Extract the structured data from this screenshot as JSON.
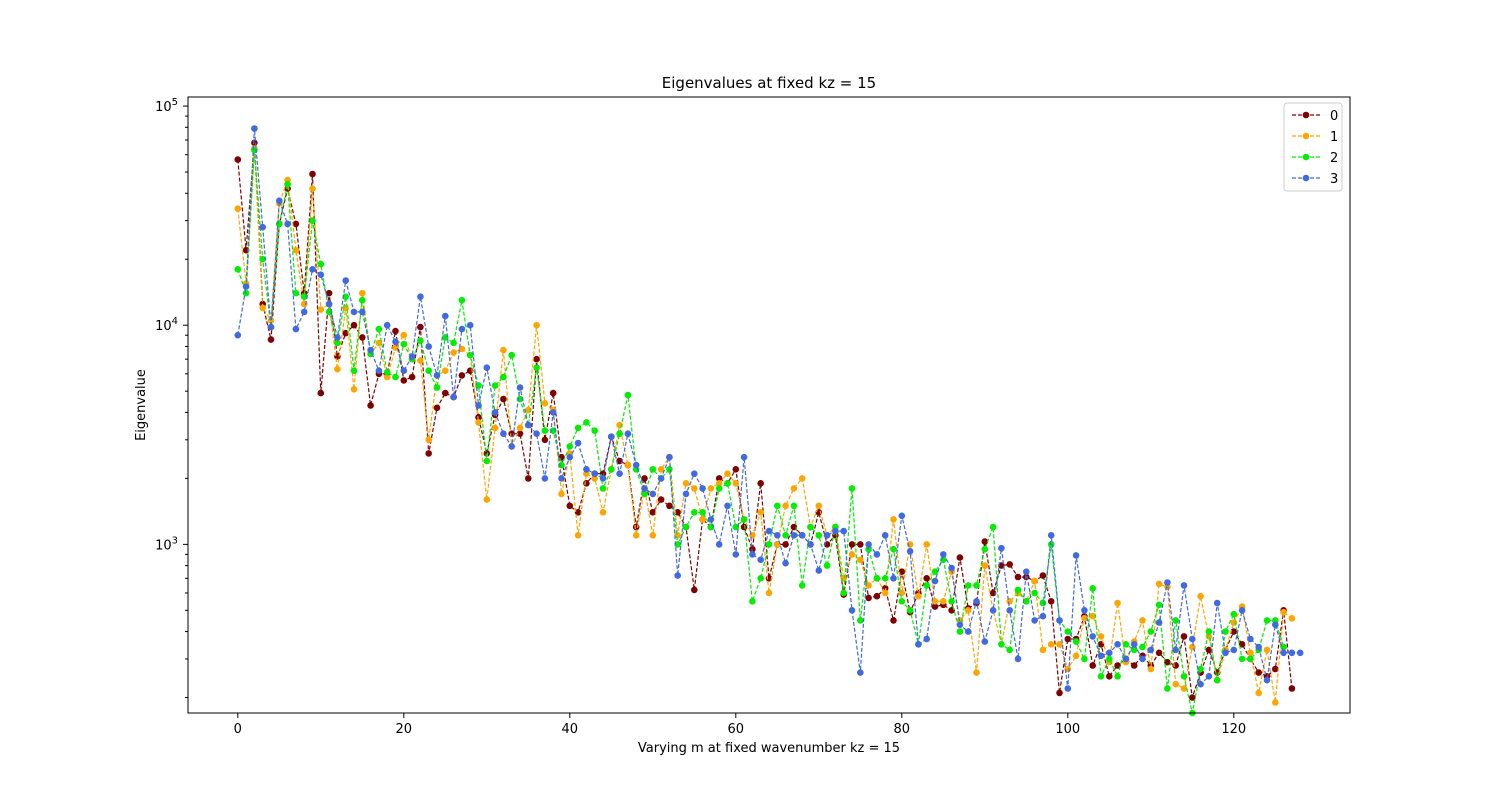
{
  "chart_data": {
    "type": "line",
    "title": "Eigenvalues at fixed kz = 15",
    "xlabel": "Varying m at fixed wavenumber kz = 15",
    "ylabel": "Eigenvalue",
    "xlim": [
      -6,
      134
    ],
    "ylim": [
      170,
      110000
    ],
    "y_scale": "log",
    "x_ticks": [
      0,
      20,
      40,
      60,
      80,
      100,
      120
    ],
    "y_ticks": [
      1000,
      10000,
      100000
    ],
    "y_tick_labels": [
      {
        "base": "10",
        "exp": "3"
      },
      {
        "base": "10",
        "exp": "4"
      },
      {
        "base": "10",
        "exp": "5"
      }
    ],
    "grid": false,
    "legend_position": "top-right",
    "series": [
      {
        "name": "0",
        "color": "#800000",
        "values": [
          57000,
          22000,
          68000,
          12500,
          8600,
          29000,
          42000,
          29000,
          14000,
          49000,
          4900,
          14000,
          7200,
          9200,
          10000,
          8800,
          4300,
          6000,
          6000,
          9400,
          5600,
          5800,
          9800,
          2600,
          4200,
          4900,
          4700,
          5900,
          6200,
          3800,
          2600,
          3900,
          4600,
          3200,
          3200,
          2000,
          7000,
          3000,
          4900,
          2500,
          1500,
          1400,
          1900,
          2100,
          2100,
          3100,
          2400,
          2300,
          1200,
          2000,
          1400,
          1600,
          1500,
          1400,
          1200,
          620,
          1300,
          1200,
          2000,
          1900,
          2200,
          1200,
          950,
          1900,
          700,
          1000,
          1000,
          1200,
          1100,
          1000,
          1400,
          1000,
          1100,
          590,
          1000,
          1000,
          570,
          580,
          630,
          450,
          750,
          490,
          600,
          700,
          520,
          530,
          500,
          870,
          510,
          540,
          1030,
          600,
          800,
          810,
          710,
          710,
          680,
          720,
          550,
          210,
          370,
          370,
          470,
          280,
          350,
          250,
          280,
          300,
          280,
          310,
          280,
          320,
          290,
          280,
          380,
          200,
          260,
          330,
          260,
          330,
          400,
          350,
          300,
          260,
          250,
          270,
          500,
          220
        ]
      },
      {
        "name": "1",
        "color": "#ffa500",
        "values": [
          34000,
          15500,
          64000,
          12000,
          10500,
          36000,
          46000,
          22000,
          12500,
          42000,
          11800,
          12500,
          6300,
          12000,
          5100,
          14000,
          7400,
          8300,
          5800,
          7900,
          9000,
          7000,
          6900,
          3000,
          5900,
          6200,
          7500,
          7800,
          7300,
          3600,
          1600,
          3400,
          7700,
          2800,
          3400,
          4100,
          10000,
          4400,
          4100,
          1700,
          2600,
          1100,
          2100,
          2000,
          1400,
          2200,
          3500,
          2300,
          1100,
          1800,
          1100,
          2200,
          2500,
          1100,
          1900,
          1800,
          1300,
          1800,
          1900,
          2100,
          1900,
          1300,
          1100,
          1400,
          600,
          1000,
          1500,
          1800,
          2000,
          1200,
          1500,
          1100,
          1200,
          700,
          900,
          850,
          650,
          700,
          600,
          1300,
          600,
          1000,
          580,
          1000,
          550,
          550,
          750,
          450,
          500,
          260,
          800,
          500,
          350,
          550,
          600,
          550,
          680,
          330,
          350,
          350,
          270,
          310,
          460,
          470,
          380,
          290,
          540,
          290,
          360,
          450,
          270,
          660,
          640,
          230,
          220,
          340,
          580,
          380,
          240,
          330,
          440,
          520,
          320,
          210,
          330,
          190,
          490,
          460
        ]
      },
      {
        "name": "2",
        "color": "#00ee00",
        "values": [
          18000,
          14000,
          63000,
          20000,
          9800,
          29000,
          44000,
          14000,
          13500,
          30000,
          19000,
          11500,
          8300,
          13500,
          6200,
          13000,
          7400,
          9600,
          6100,
          5800,
          8200,
          7000,
          8500,
          6200,
          5200,
          8800,
          8300,
          13000,
          7300,
          5300,
          2400,
          5300,
          5800,
          7300,
          4600,
          3500,
          6400,
          3300,
          3300,
          2300,
          2800,
          3400,
          3600,
          3300,
          1800,
          2200,
          3200,
          4800,
          2200,
          1700,
          2200,
          2000,
          2200,
          1000,
          1200,
          1400,
          1400,
          1200,
          1800,
          1900,
          1200,
          1300,
          550,
          700,
          1000,
          1500,
          1100,
          1500,
          650,
          1200,
          1100,
          800,
          1200,
          600,
          1800,
          450,
          950,
          700,
          700,
          950,
          550,
          500,
          350,
          650,
          750,
          850,
          550,
          400,
          650,
          650,
          950,
          1200,
          350,
          330,
          620,
          550,
          600,
          540,
          1000,
          450,
          400,
          360,
          300,
          630,
          250,
          300,
          250,
          350,
          330,
          340,
          400,
          530,
          220,
          450,
          250,
          170,
          270,
          400,
          240,
          400,
          480,
          300,
          300,
          330,
          450,
          450,
          340
        ]
      },
      {
        "name": "3",
        "color": "#4169e1",
        "values": [
          9000,
          15000,
          79000,
          28000,
          9800,
          37000,
          29000,
          9600,
          11500,
          18000,
          17000,
          12500,
          8800,
          16000,
          11500,
          11500,
          7700,
          6200,
          10000,
          8400,
          6200,
          7200,
          13500,
          8000,
          5900,
          11000,
          4700,
          9600,
          10000,
          4300,
          6400,
          4000,
          3200,
          2800,
          5200,
          3500,
          3200,
          2000,
          4000,
          2000,
          2500,
          2900,
          2200,
          2100,
          2000,
          3100,
          2100,
          3200,
          2300,
          1800,
          1700,
          2000,
          2500,
          720,
          1700,
          2100,
          1800,
          1300,
          1000,
          1500,
          900,
          2500,
          900,
          850,
          1150,
          1100,
          820,
          1100,
          1100,
          1000,
          760,
          1100,
          1150,
          1150,
          500,
          260,
          1000,
          900,
          1100,
          700,
          1350,
          930,
          350,
          370,
          680,
          900,
          780,
          430,
          400,
          550,
          360,
          500,
          960,
          500,
          300,
          750,
          450,
          470,
          1100,
          450,
          220,
          890,
          500,
          380,
          310,
          320,
          350,
          300,
          350,
          300,
          330,
          440,
          670,
          330,
          650,
          370,
          230,
          250,
          540,
          320,
          330,
          500,
          370,
          340,
          240,
          430,
          320,
          320,
          320
        ]
      }
    ]
  }
}
